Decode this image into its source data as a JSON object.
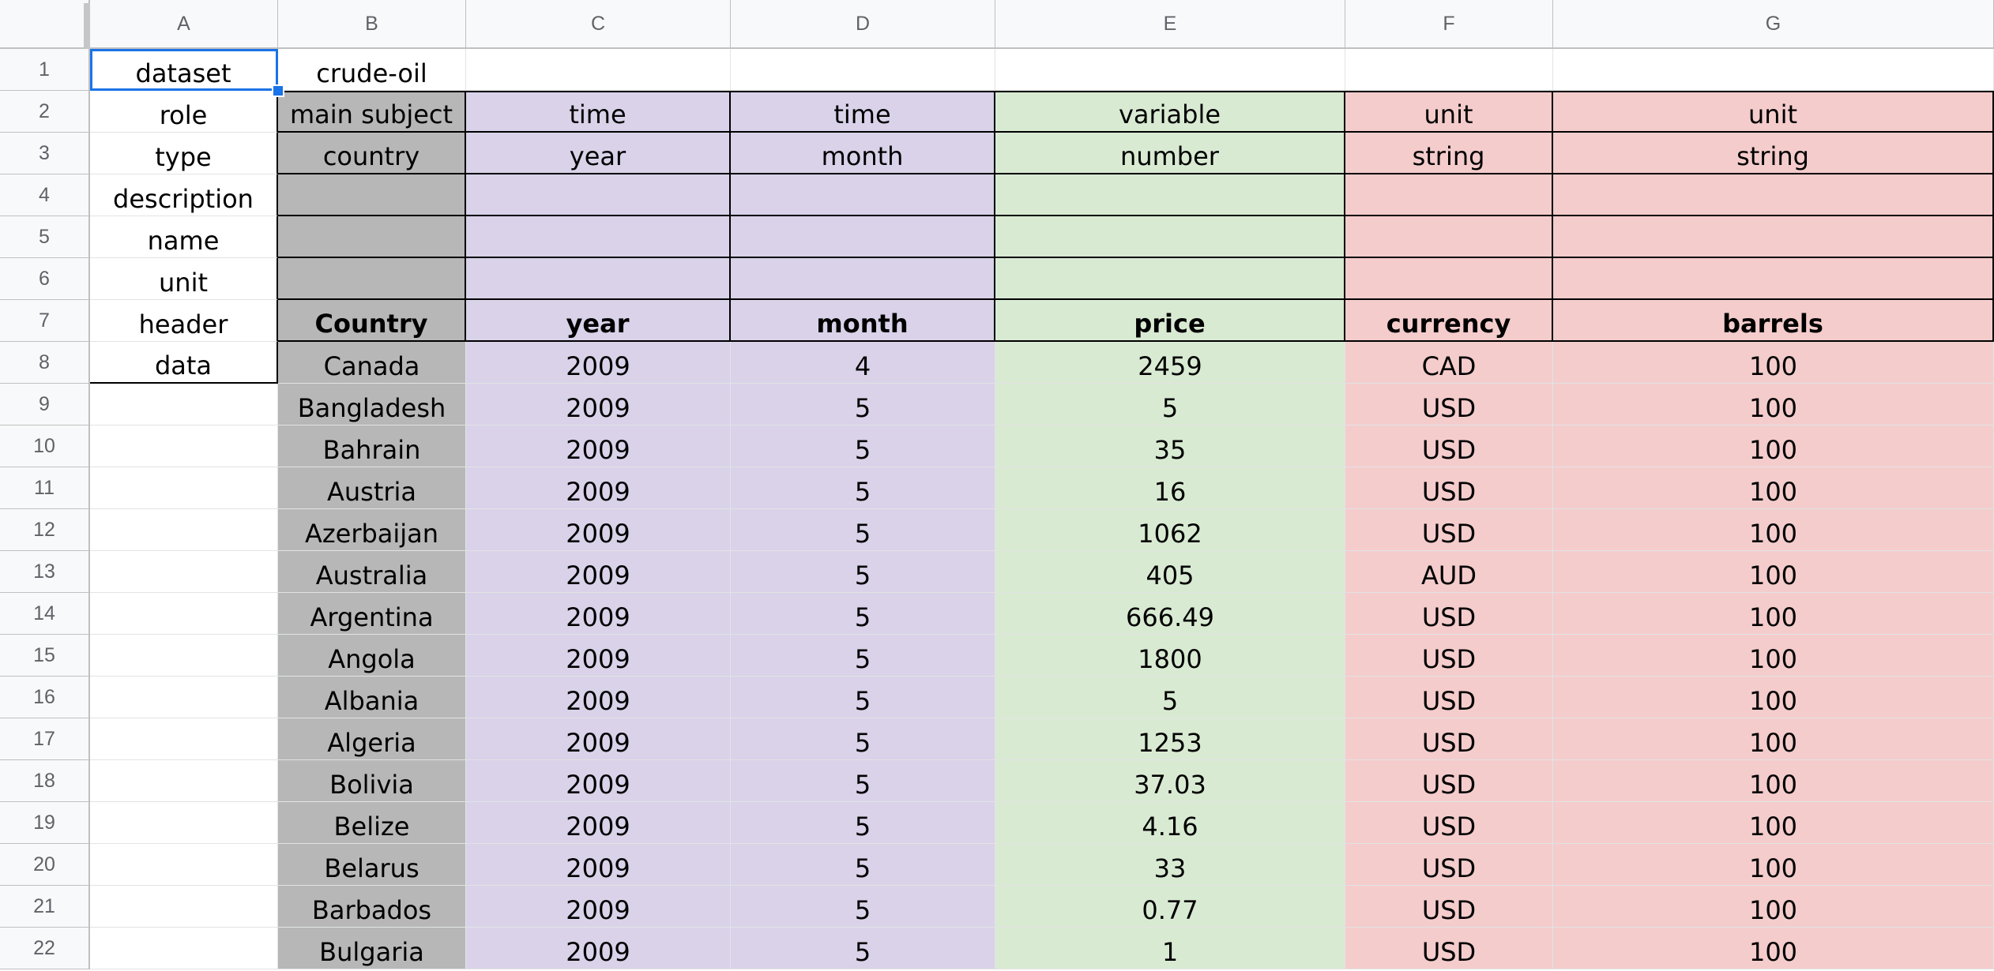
{
  "colors": {
    "gray": "#b7b7b7",
    "purple": "#d9d2e9",
    "green": "#d9ead3",
    "red": "#f4cccc",
    "white": "#ffffff",
    "selection": "#1a73e8"
  },
  "columns": [
    "A",
    "B",
    "C",
    "D",
    "E",
    "F",
    "G"
  ],
  "rows": [
    "1",
    "2",
    "3",
    "4",
    "5",
    "6",
    "7",
    "8",
    "9",
    "10",
    "11",
    "12",
    "13",
    "14",
    "15",
    "16",
    "17",
    "18",
    "19",
    "20",
    "21",
    "22"
  ],
  "col_fills": [
    "white",
    "gray",
    "purple",
    "purple",
    "green",
    "red",
    "red"
  ],
  "meta_labels": [
    "dataset",
    "role",
    "type",
    "description",
    "name",
    "unit",
    "header",
    "data"
  ],
  "dataset_name": "crude-oil",
  "role_row": [
    "main subject",
    "time",
    "time",
    "variable",
    "unit",
    "unit"
  ],
  "type_row": [
    "country",
    "year",
    "month",
    "number",
    "string",
    "string"
  ],
  "header_row": [
    "Country",
    "year",
    "month",
    "price",
    "currency",
    "barrels"
  ],
  "data_rows": [
    [
      "Canada",
      "2009",
      "4",
      "2459",
      "CAD",
      "100"
    ],
    [
      "Bangladesh",
      "2009",
      "5",
      "5",
      "USD",
      "100"
    ],
    [
      "Bahrain",
      "2009",
      "5",
      "35",
      "USD",
      "100"
    ],
    [
      "Austria",
      "2009",
      "5",
      "16",
      "USD",
      "100"
    ],
    [
      "Azerbaijan",
      "2009",
      "5",
      "1062",
      "USD",
      "100"
    ],
    [
      "Australia",
      "2009",
      "5",
      "405",
      "AUD",
      "100"
    ],
    [
      "Argentina",
      "2009",
      "5",
      "666.49",
      "USD",
      "100"
    ],
    [
      "Angola",
      "2009",
      "5",
      "1800",
      "USD",
      "100"
    ],
    [
      "Albania",
      "2009",
      "5",
      "5",
      "USD",
      "100"
    ],
    [
      "Algeria",
      "2009",
      "5",
      "1253",
      "USD",
      "100"
    ],
    [
      "Bolivia",
      "2009",
      "5",
      "37.03",
      "USD",
      "100"
    ],
    [
      "Belize",
      "2009",
      "5",
      "4.16",
      "USD",
      "100"
    ],
    [
      "Belarus",
      "2009",
      "5",
      "33",
      "USD",
      "100"
    ],
    [
      "Barbados",
      "2009",
      "5",
      "0.77",
      "USD",
      "100"
    ],
    [
      "Bulgaria",
      "2009",
      "5",
      "1",
      "USD",
      "100"
    ]
  ],
  "selected_cell": "A1"
}
